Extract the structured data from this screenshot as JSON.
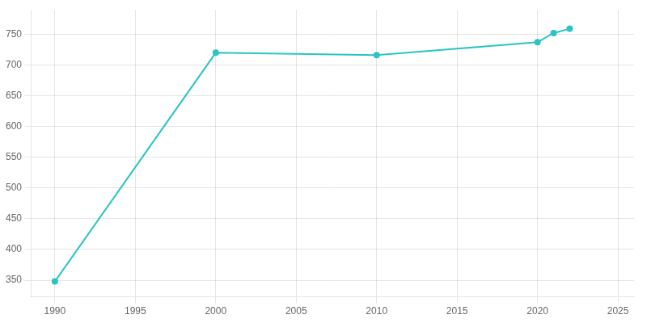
{
  "chart_data": {
    "type": "line",
    "x": [
      1990,
      2000,
      2010,
      2020,
      2021,
      2022
    ],
    "values": [
      348,
      720,
      716,
      737,
      752,
      759
    ],
    "color": "#2ac4c4",
    "marker": "circle",
    "xlim": [
      1988.5,
      2026
    ],
    "ylim": [
      323,
      790
    ],
    "xticks": [
      1990,
      1995,
      2000,
      2005,
      2010,
      2015,
      2020,
      2025
    ],
    "yticks": [
      350,
      400,
      450,
      500,
      550,
      600,
      650,
      700,
      750
    ],
    "grid": true
  }
}
